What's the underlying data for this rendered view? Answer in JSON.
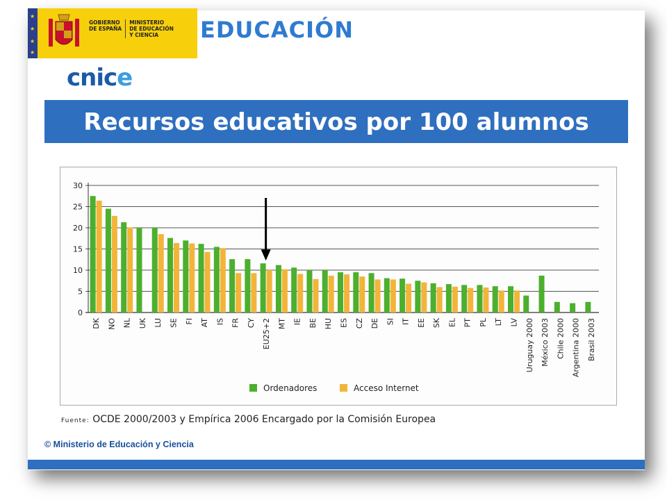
{
  "header": {
    "ministry_lines_left": "GOBIERNO\nDE ESPAÑA",
    "ministry_lines_right": "MINISTERIO\nDE EDUCACIÓN\nY CIENCIA",
    "education_title": "EDUCACIÓN",
    "cnice_prefix": "cnic",
    "cnice_suffix": "e"
  },
  "slide_title": "Recursos educativos por 100 alumnos",
  "source_label": "Fuente:",
  "source_text": "OCDE 2000/2003 y Empírica 2006 Encargado por la Comisión Europea",
  "copyright": "© Ministerio de Educación y Ciencia",
  "colors": {
    "series_ordenadores": "#4caf2e",
    "series_internet": "#f2b53a",
    "title_bar": "#2f6fbf"
  },
  "chart_data": {
    "type": "bar",
    "categories": [
      "DK",
      "NO",
      "NL",
      "UK",
      "LU",
      "SE",
      "FI",
      "AT",
      "IS",
      "FR",
      "CY",
      "EU25+2",
      "MT",
      "IE",
      "BE",
      "HU",
      "ES",
      "CZ",
      "DE",
      "SI",
      "IT",
      "EE",
      "SK",
      "EL",
      "PT",
      "PL",
      "LT",
      "LV",
      "Uruguay 2000",
      "México 2003",
      "Chile 2000",
      "Argentina 2000",
      "Brasil 2003"
    ],
    "series": [
      {
        "name": "Ordenadores",
        "values": [
          27.5,
          24.5,
          21.3,
          20,
          20,
          17.6,
          17,
          16.2,
          15.5,
          12.6,
          12.6,
          11.6,
          11.2,
          10.6,
          10,
          10,
          9.5,
          9.5,
          9.3,
          8.1,
          8,
          7.5,
          6.9,
          6.7,
          6.5,
          6.5,
          6.2,
          6.2,
          4,
          8.7,
          2.5,
          2.2,
          2.5
        ]
      },
      {
        "name": "Acceso Internet",
        "values": [
          26.4,
          22.8,
          20.1,
          null,
          18.5,
          16.4,
          16.3,
          14.3,
          15.2,
          9.3,
          9.3,
          10,
          10.2,
          9.1,
          7.9,
          8.7,
          9,
          8.5,
          7.8,
          7.8,
          6.8,
          7.1,
          6,
          6.1,
          5.8,
          5.9,
          5.2,
          5.2,
          null,
          null,
          null,
          null,
          null
        ]
      }
    ],
    "ylim": [
      0,
      30
    ],
    "yticks": [
      0,
      5,
      10,
      15,
      20,
      25,
      30
    ],
    "grid": true,
    "legend": "bottom",
    "annotation": {
      "type": "arrow",
      "category": "EU25+2"
    }
  }
}
